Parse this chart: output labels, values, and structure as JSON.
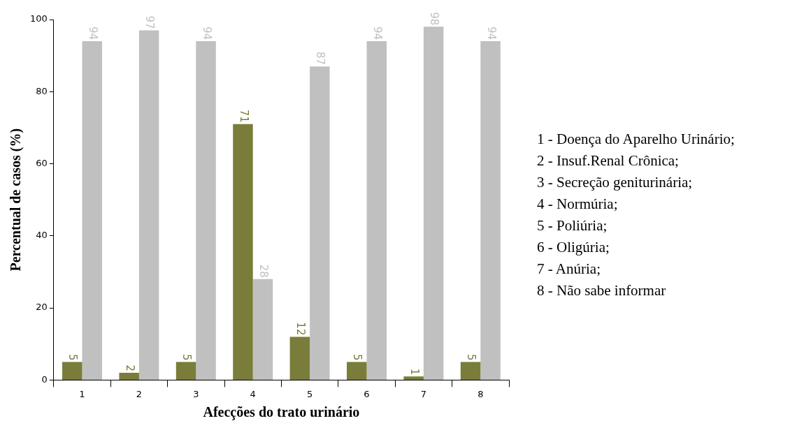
{
  "chart_data": {
    "type": "bar",
    "xlabel": "Afecções do trato urinário",
    "ylabel": "Percentual de casos (%)",
    "categories": [
      "1",
      "2",
      "3",
      "4",
      "5",
      "6",
      "7",
      "8"
    ],
    "series": [
      {
        "color": "#7a7d3a",
        "values": [
          5,
          2,
          5,
          71,
          12,
          5,
          1,
          5
        ]
      },
      {
        "color": "#c0c0c0",
        "values": [
          94,
          97,
          94,
          28,
          87,
          94,
          98,
          94
        ]
      }
    ],
    "ylim": [
      0,
      100
    ],
    "yticks": [
      0,
      20,
      40,
      60,
      80,
      100
    ],
    "grid": false,
    "legend": false,
    "data_labels": true,
    "annotations": [
      "1 - Doença do Aparelho Urinário;",
      "2 - Insuf.Renal Crônica;",
      "3 - Secreção geniturinária;",
      "4 - Normúria;",
      "5 - Poliúria;",
      "6 - Oligúria;",
      "7 - Anúria;",
      "8 - Não sabe informar"
    ]
  }
}
